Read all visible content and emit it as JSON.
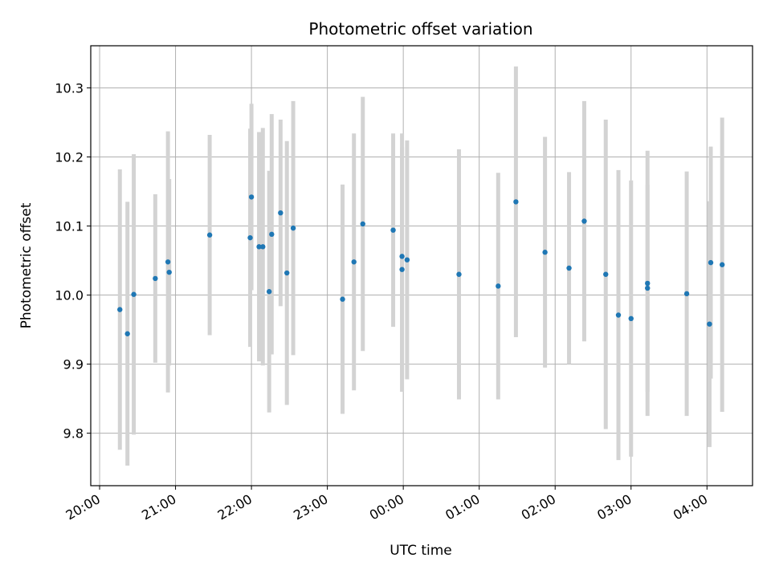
{
  "chart_data": {
    "type": "scatter",
    "title": "Photometric offset variation",
    "xlabel": "UTC time",
    "ylabel": "Photometric offset",
    "x_ticks": [
      "20:00",
      "21:00",
      "22:00",
      "23:00",
      "00:00",
      "01:00",
      "02:00",
      "03:00",
      "04:00"
    ],
    "y_ticks": [
      "9.8",
      "9.9",
      "10.0",
      "10.1",
      "10.2",
      "10.3"
    ],
    "xlim": [
      "19:53",
      "04:36"
    ],
    "ylim": [
      9.724,
      10.361
    ],
    "grid": true,
    "point_color": "#1f77b4",
    "errorbar_color": "#d3d3d3",
    "points": [
      {
        "x": "20:16",
        "y": 9.979,
        "err": 0.203
      },
      {
        "x": "20:22",
        "y": 9.944,
        "err": 0.191
      },
      {
        "x": "20:27",
        "y": 10.001,
        "err": 0.203
      },
      {
        "x": "20:44",
        "y": 10.024,
        "err": 0.122
      },
      {
        "x": "20:54",
        "y": 10.048,
        "err": 0.189
      },
      {
        "x": "20:55",
        "y": 10.033,
        "err": 0.135
      },
      {
        "x": "21:27",
        "y": 10.087,
        "err": 0.145
      },
      {
        "x": "21:59",
        "y": 10.083,
        "err": 0.158
      },
      {
        "x": "22:00",
        "y": 10.142,
        "err": 0.135
      },
      {
        "x": "22:06",
        "y": 10.07,
        "err": 0.166
      },
      {
        "x": "22:09",
        "y": 10.07,
        "err": 0.172
      },
      {
        "x": "22:14",
        "y": 10.005,
        "err": 0.175
      },
      {
        "x": "22:16",
        "y": 10.088,
        "err": 0.174
      },
      {
        "x": "22:23",
        "y": 10.119,
        "err": 0.135
      },
      {
        "x": "22:28",
        "y": 10.032,
        "err": 0.191
      },
      {
        "x": "22:33",
        "y": 10.097,
        "err": 0.184
      },
      {
        "x": "23:12",
        "y": 9.994,
        "err": 0.166
      },
      {
        "x": "23:21",
        "y": 10.048,
        "err": 0.186
      },
      {
        "x": "23:28",
        "y": 10.103,
        "err": 0.184
      },
      {
        "x": "23:52",
        "y": 10.094,
        "err": 0.14
      },
      {
        "x": "23:59",
        "y": 10.037,
        "err": 0.177
      },
      {
        "x": "23:59",
        "y": 10.056,
        "err": 0.178
      },
      {
        "x": "00:03",
        "y": 10.051,
        "err": 0.173
      },
      {
        "x": "00:44",
        "y": 10.03,
        "err": 0.181
      },
      {
        "x": "01:15",
        "y": 10.013,
        "err": 0.164
      },
      {
        "x": "01:29",
        "y": 10.135,
        "err": 0.196
      },
      {
        "x": "01:52",
        "y": 10.062,
        "err": 0.167
      },
      {
        "x": "02:11",
        "y": 10.039,
        "err": 0.139
      },
      {
        "x": "02:23",
        "y": 10.107,
        "err": 0.174
      },
      {
        "x": "02:40",
        "y": 10.03,
        "err": 0.224
      },
      {
        "x": "02:50",
        "y": 9.971,
        "err": 0.21
      },
      {
        "x": "03:00",
        "y": 9.966,
        "err": 0.2
      },
      {
        "x": "03:13",
        "y": 10.017,
        "err": 0.192
      },
      {
        "x": "03:13",
        "y": 10.01,
        "err": 0.15
      },
      {
        "x": "03:44",
        "y": 10.002,
        "err": 0.177
      },
      {
        "x": "04:02",
        "y": 9.958,
        "err": 0.178
      },
      {
        "x": "04:03",
        "y": 10.047,
        "err": 0.168
      },
      {
        "x": "04:12",
        "y": 10.044,
        "err": 0.213
      }
    ]
  }
}
